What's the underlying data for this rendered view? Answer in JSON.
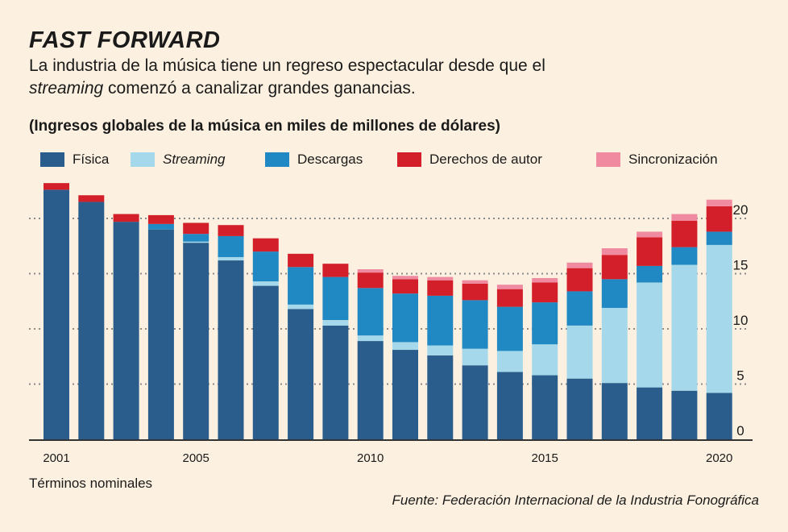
{
  "title": "FAST FORWARD",
  "subtitle": {
    "part1": "La industria de la música tiene un regreso espectacular desde que el ",
    "emphasis": "streaming",
    "part2": " comenzó a canalizar grandes ganancias."
  },
  "heading": "(Ingresos globales de la música en miles de millones de dólares)",
  "note": "Términos nominales",
  "source": "Fuente: Federación Internacional de la Industria Fonográfica",
  "legend": [
    {
      "label": "Física",
      "color": "#2a5d8c",
      "italic": false
    },
    {
      "label": "Streaming",
      "color": "#a5d8ea",
      "italic": true
    },
    {
      "label": "Descargas",
      "color": "#2088c2",
      "italic": false
    },
    {
      "label": "Derechos de autor",
      "color": "#d21f2a",
      "italic": false
    },
    {
      "label": "Sincronización",
      "color": "#f08aa1",
      "italic": false
    }
  ],
  "chart_data": {
    "type": "bar",
    "stacked": true,
    "categories": [
      "2001",
      "2002",
      "2003",
      "2004",
      "2005",
      "2006",
      "2007",
      "2008",
      "2009",
      "2010",
      "2011",
      "2012",
      "2013",
      "2014",
      "2015",
      "2016",
      "2017",
      "2018",
      "2019",
      "2020"
    ],
    "x_tick_labels": [
      "2001",
      "2005",
      "2010",
      "2015",
      "2020"
    ],
    "y_ticks": [
      0,
      5,
      10,
      15,
      20
    ],
    "ylim": [
      0,
      22
    ],
    "grid": true,
    "legend_position": "top",
    "series": [
      {
        "name": "Física",
        "color": "#2a5d8c",
        "values": [
          22.6,
          21.5,
          19.7,
          19.0,
          17.8,
          16.2,
          13.9,
          11.8,
          10.3,
          8.9,
          8.1,
          7.6,
          6.7,
          6.1,
          5.8,
          5.5,
          5.1,
          4.7,
          4.4,
          4.2
        ]
      },
      {
        "name": "Streaming",
        "color": "#a5d8ea",
        "values": [
          0,
          0,
          0,
          0,
          0.1,
          0.3,
          0.4,
          0.4,
          0.5,
          0.5,
          0.7,
          0.9,
          1.5,
          1.9,
          2.8,
          4.8,
          6.8,
          9.5,
          11.4,
          13.4
        ]
      },
      {
        "name": "Descargas",
        "color": "#2088c2",
        "values": [
          0,
          0,
          0,
          0.5,
          0.7,
          1.9,
          2.7,
          3.4,
          3.9,
          4.3,
          4.4,
          4.5,
          4.4,
          4.0,
          3.8,
          3.1,
          2.6,
          1.5,
          1.6,
          1.2
        ]
      },
      {
        "name": "Derechos de autor",
        "color": "#d21f2a",
        "values": [
          0.6,
          0.6,
          0.7,
          0.8,
          1.0,
          1.0,
          1.2,
          1.2,
          1.2,
          1.4,
          1.3,
          1.4,
          1.5,
          1.6,
          1.8,
          2.1,
          2.2,
          2.6,
          2.4,
          2.3
        ]
      },
      {
        "name": "Sincronización",
        "color": "#f08aa1",
        "values": [
          0,
          0,
          0,
          0,
          0,
          0,
          0,
          0,
          0,
          0.3,
          0.3,
          0.3,
          0.3,
          0.4,
          0.4,
          0.5,
          0.6,
          0.5,
          0.6,
          0.6
        ]
      }
    ]
  }
}
